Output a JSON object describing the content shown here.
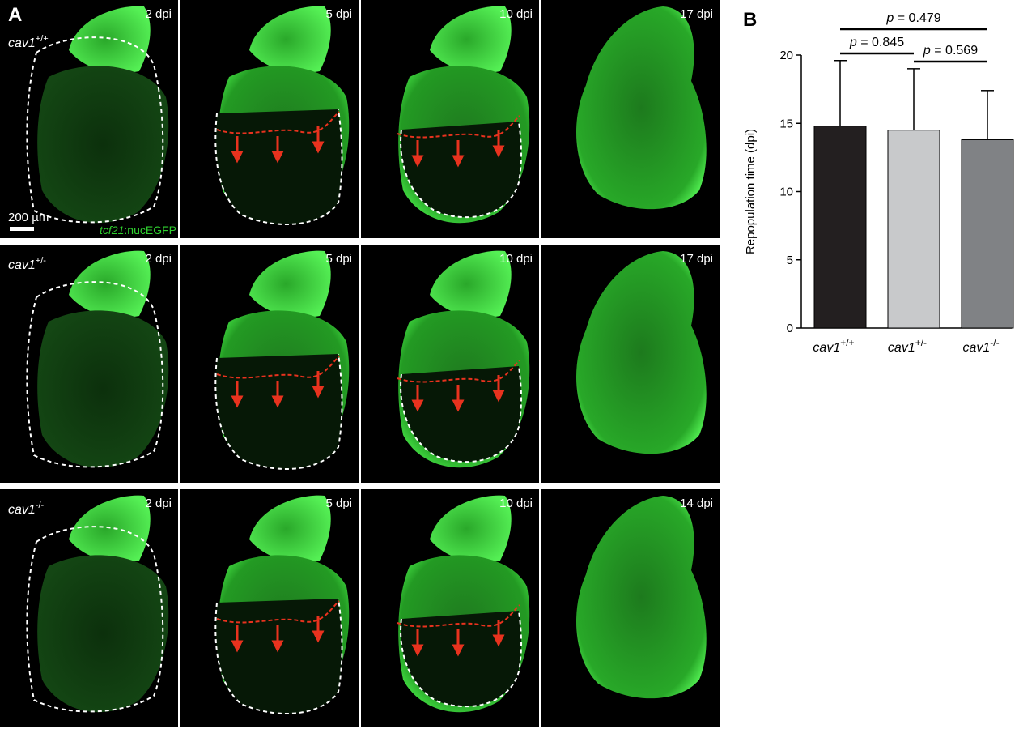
{
  "panel_a": {
    "label": "A",
    "scale_bar_label": "200 µm",
    "reporter": {
      "gene": "tcf21",
      "suffix": ":nucEGFP"
    },
    "rows": [
      {
        "genotype": {
          "base": "cav1",
          "sup": "+/+"
        },
        "timepoints": [
          "2 dpi",
          "5 dpi",
          "10 dpi",
          "17 dpi"
        ]
      },
      {
        "genotype": {
          "base": "cav1",
          "sup": "+/-"
        },
        "timepoints": [
          "2 dpi",
          "5 dpi",
          "10 dpi",
          "17 dpi"
        ]
      },
      {
        "genotype": {
          "base": "cav1",
          "sup": "-/-"
        },
        "timepoints": [
          "2 dpi",
          "5 dpi",
          "10 dpi",
          "14 dpi"
        ]
      }
    ],
    "colors": {
      "tissue": "#2fd02f",
      "injury_front": "#e8321e",
      "injury_outline": "#ffffff",
      "background": "#000000"
    }
  },
  "panel_b": {
    "label": "B",
    "chart_data": {
      "type": "bar",
      "ylabel": "Repopulation time (dpi)",
      "ylim": [
        0,
        20
      ],
      "yticks": [
        0,
        5,
        10,
        15,
        20
      ],
      "categories": [
        {
          "base": "cav1",
          "sup": "+/+"
        },
        {
          "base": "cav1",
          "sup": "+/-"
        },
        {
          "base": "cav1",
          "sup": "-/-"
        }
      ],
      "values": [
        14.8,
        14.5,
        13.8
      ],
      "error_upper": [
        19.6,
        19.0,
        17.4
      ],
      "bar_colors": [
        "#231f20",
        "#c8c9cb",
        "#808285"
      ],
      "comparisons": [
        {
          "from": 0,
          "to": 2,
          "p_label": "p",
          "p_value": " = 0.479"
        },
        {
          "from": 0,
          "to": 1,
          "p_label": "p",
          "p_value": " = 0.845"
        },
        {
          "from": 1,
          "to": 2,
          "p_label": "p",
          "p_value": " = 0.569"
        }
      ]
    }
  }
}
